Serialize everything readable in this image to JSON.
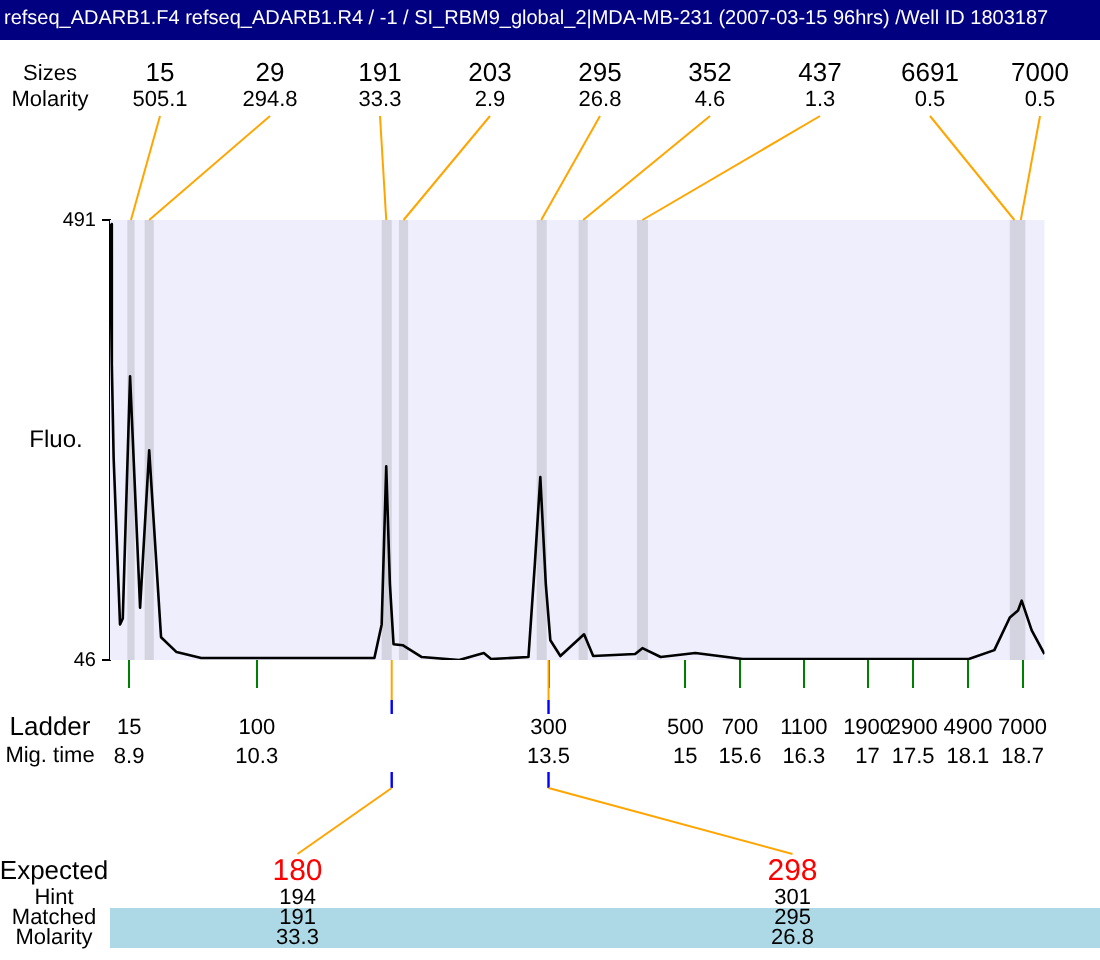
{
  "chart_data": {
    "type": "line",
    "title": "refseq_ADARB1.F4  refseq_ADARB1.R4 / -1 / SI_RBM9_global_2|MDA-MB-231 (2007-03-15 96hrs) /Well ID 1803187",
    "ylabel": "Fluo.",
    "xlabel": "Mig. time",
    "x": [
      8.69,
      8.71,
      8.73,
      8.8,
      8.83,
      8.91,
      9.02,
      9.12,
      9.25,
      9.42,
      9.69,
      11.59,
      11.67,
      11.72,
      11.76,
      11.8,
      11.9,
      12.11,
      12.52,
      12.79,
      12.87,
      13.28,
      13.35,
      13.41,
      13.47,
      13.52,
      13.63,
      13.89,
      13.99,
      14.45,
      14.53,
      14.73,
      15.11,
      15.63,
      18.11,
      18.39,
      18.56,
      18.65,
      18.69,
      18.8,
      18.94
    ],
    "values": [
      487,
      345,
      250,
      82,
      88,
      333,
      99,
      258,
      69,
      54,
      48,
      48,
      82,
      242,
      123,
      62,
      61,
      49,
      46,
      53,
      47,
      49,
      143,
      231,
      123,
      66,
      50,
      72,
      50,
      52,
      58,
      49,
      53,
      47,
      47,
      56,
      89,
      96,
      106,
      76,
      52
    ],
    "color": "#000000",
    "line_style": "solid",
    "marker": "none",
    "grid": false,
    "legend": false,
    "xlim": [
      8.69,
      18.94
    ],
    "xticks": [
      8.9,
      10.3,
      13.5,
      15,
      15.6,
      16.3,
      17,
      17.5,
      18.1,
      18.7
    ],
    "ylim": [
      46,
      491
    ],
    "yticks": [
      46,
      491
    ],
    "bands": [
      {
        "axis": "x",
        "from": 8.88,
        "to": 8.96,
        "color": "#d4d4e0"
      },
      {
        "axis": "x",
        "from": 9.07,
        "to": 9.17,
        "color": "#d4d4e0"
      },
      {
        "axis": "x",
        "from": 11.67,
        "to": 11.78,
        "color": "#d4d4e0"
      },
      {
        "axis": "x",
        "from": 11.86,
        "to": 11.96,
        "color": "#d4d4e0"
      },
      {
        "axis": "x",
        "from": 13.37,
        "to": 13.48,
        "color": "#d4d4e0"
      },
      {
        "axis": "x",
        "from": 13.83,
        "to": 13.93,
        "color": "#d4d4e0"
      },
      {
        "axis": "x",
        "from": 14.47,
        "to": 14.59,
        "color": "#d4d4e0"
      },
      {
        "axis": "x",
        "from": 18.56,
        "to": 18.66,
        "color": "#d4d4e0"
      },
      {
        "axis": "x",
        "from": 18.62,
        "to": 18.73,
        "color": "#d4d4e0"
      }
    ],
    "annotations": [
      "Sizes",
      {
        "text": "15",
        "x": 8.92,
        "y": 491
      },
      {
        "text": "29",
        "x": 9.12,
        "y": 491
      },
      {
        "text": "191",
        "x": 11.72,
        "y": 491
      },
      {
        "text": "203",
        "x": 11.91,
        "y": 491
      },
      {
        "text": "295",
        "x": 13.42,
        "y": 491
      },
      {
        "text": "352",
        "x": 13.88,
        "y": 491
      },
      {
        "text": "437",
        "x": 14.53,
        "y": 491
      },
      {
        "text": "6691",
        "x": 18.61,
        "y": 491
      },
      {
        "text": "7000",
        "x": 18.68,
        "y": 491
      },
      "Molarity",
      "505.1",
      "294.8",
      "33.3",
      "2.9",
      "26.8",
      "4.6",
      "1.3",
      "0.5",
      "0.5",
      "Ladder",
      "15",
      "100",
      "300",
      "500",
      "700",
      "1100",
      "1900",
      "2900",
      "4900",
      "7000",
      "Expected",
      {
        "text": "180",
        "x": 11.78
      },
      {
        "text": "298",
        "x": 13.5
      },
      "Hint",
      "194",
      "301",
      "Matched",
      "191",
      "295",
      "Molarity",
      "33.3",
      "26.8"
    ]
  }
}
